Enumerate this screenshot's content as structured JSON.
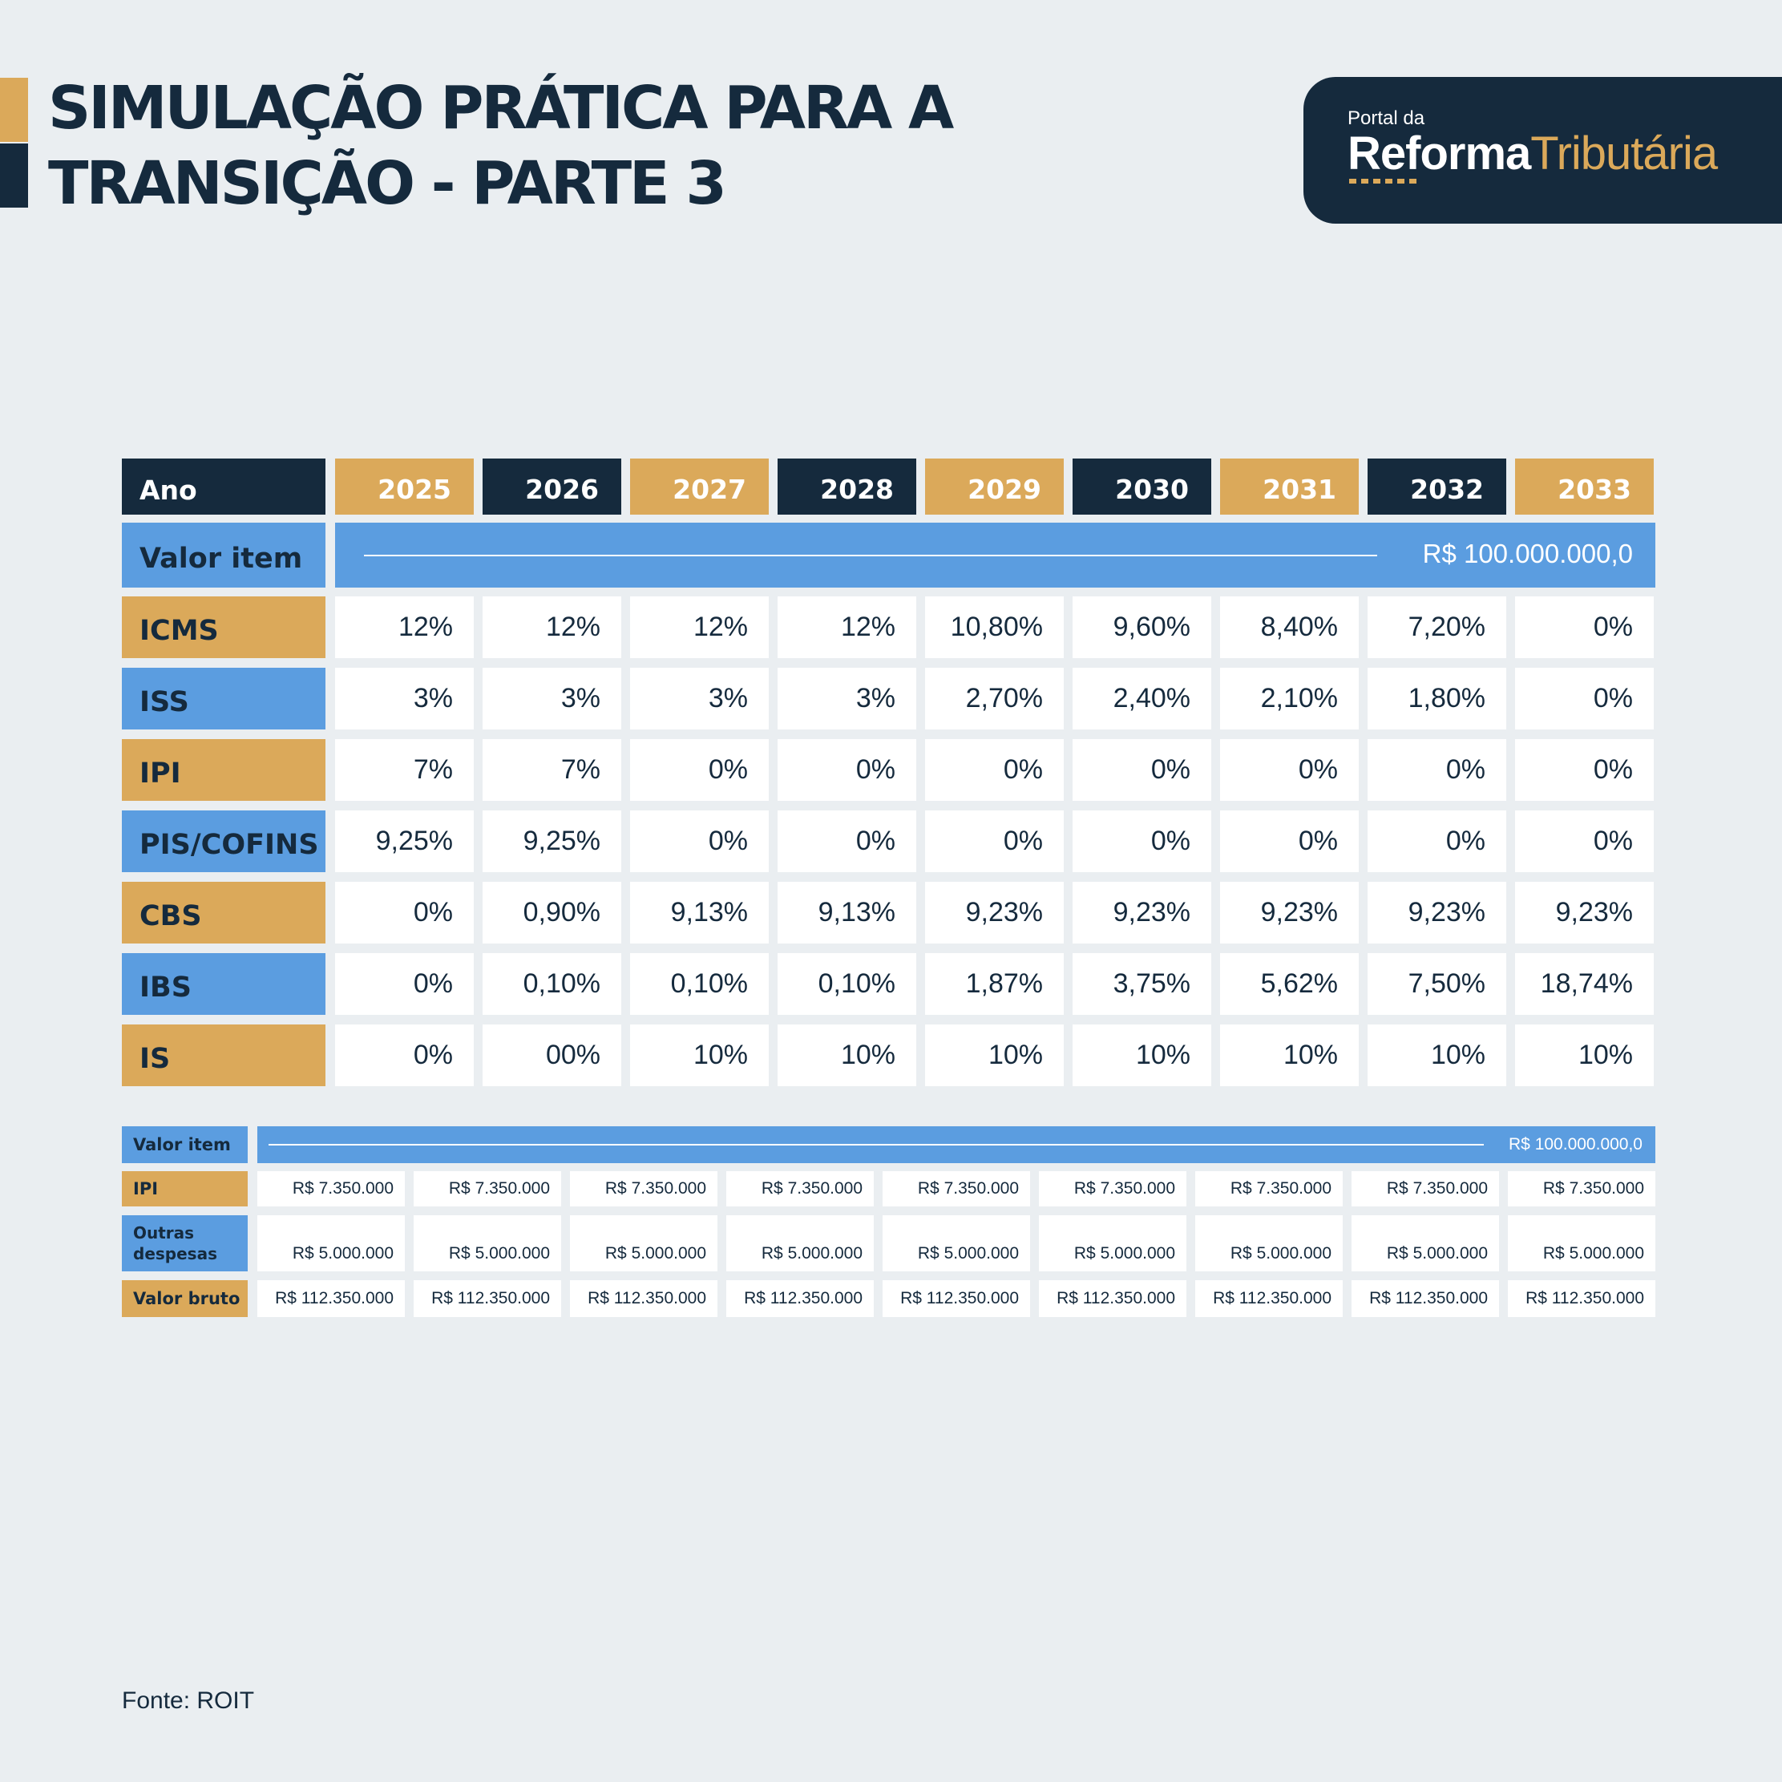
{
  "title": {
    "line1": "SIMULAÇÃO PRÁTICA PARA A",
    "line2": "TRANSIÇÃO - PARTE 3"
  },
  "logo": {
    "small": "Portal da",
    "strong": "Reforma",
    "light": "Tributária"
  },
  "colors": {
    "navy": "#152a3d",
    "gold": "#dba95a",
    "blue": "#5b9de0",
    "background": "#eaeef1"
  },
  "table": {
    "header_label": "Ano",
    "years": [
      "2025",
      "2026",
      "2027",
      "2028",
      "2029",
      "2030",
      "2031",
      "2032",
      "2033"
    ],
    "valor_item_label": "Valor item",
    "valor_item_value": "R$ 100.000.000,0",
    "rows": [
      {
        "label": "ICMS",
        "values": [
          "12%",
          "12%",
          "12%",
          "12%",
          "10,80%",
          "9,60%",
          "8,40%",
          "7,20%",
          "0%"
        ]
      },
      {
        "label": "ISS",
        "values": [
          "3%",
          "3%",
          "3%",
          "3%",
          "2,70%",
          "2,40%",
          "2,10%",
          "1,80%",
          "0%"
        ]
      },
      {
        "label": "IPI",
        "values": [
          "7%",
          "7%",
          "0%",
          "0%",
          "0%",
          "0%",
          "0%",
          "0%",
          "0%"
        ]
      },
      {
        "label": "PIS/COFINS",
        "values": [
          "9,25%",
          "9,25%",
          "0%",
          "0%",
          "0%",
          "0%",
          "0%",
          "0%",
          "0%"
        ]
      },
      {
        "label": "CBS",
        "values": [
          "0%",
          "0,90%",
          "9,13%",
          "9,13%",
          "9,23%",
          "9,23%",
          "9,23%",
          "9,23%",
          "9,23%"
        ]
      },
      {
        "label": "IBS",
        "values": [
          "0%",
          "0,10%",
          "0,10%",
          "0,10%",
          "1,87%",
          "3,75%",
          "5,62%",
          "7,50%",
          "18,74%"
        ]
      },
      {
        "label": "IS",
        "values": [
          "0%",
          "00%",
          "10%",
          "10%",
          "10%",
          "10%",
          "10%",
          "10%",
          "10%"
        ]
      }
    ]
  },
  "table2": {
    "valor_item_label": "Valor item",
    "valor_item_value": "R$ 100.000.000,0",
    "rows": [
      {
        "label": "IPI",
        "values": [
          "R$ 7.350.000",
          "R$ 7.350.000",
          "R$ 7.350.000",
          "R$ 7.350.000",
          "R$ 7.350.000",
          "R$ 7.350.000",
          "R$ 7.350.000",
          "R$ 7.350.000",
          "R$ 7.350.000"
        ]
      },
      {
        "label": "Outras despesas",
        "values": [
          "R$ 5.000.000",
          "R$ 5.000.000",
          "R$ 5.000.000",
          "R$ 5.000.000",
          "R$ 5.000.000",
          "R$ 5.000.000",
          "R$ 5.000.000",
          "R$ 5.000.000",
          "R$ 5.000.000"
        ]
      },
      {
        "label": "Valor bruto",
        "values": [
          "R$ 112.350.000",
          "R$ 112.350.000",
          "R$ 112.350.000",
          "R$ 112.350.000",
          "R$ 112.350.000",
          "R$ 112.350.000",
          "R$ 112.350.000",
          "R$ 112.350.000",
          "R$ 112.350.000"
        ]
      }
    ]
  },
  "source": "Fonte: ROIT"
}
